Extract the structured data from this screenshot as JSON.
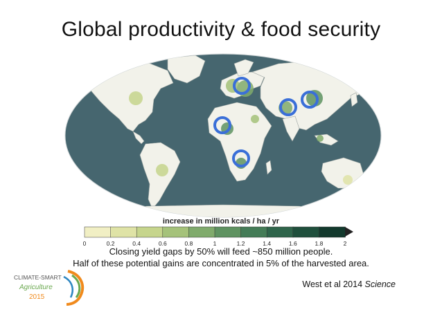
{
  "slide": {
    "title": "Global productivity & food security",
    "legend_title": "increase in million kcals / ha / yr",
    "legend_ticks": [
      "0",
      "0.2",
      "0.4",
      "0.6",
      "0.8",
      "1",
      "1.2",
      "1.4",
      "1.6",
      "1.8",
      "2"
    ],
    "legend_colors": [
      "#f1efc4",
      "#dfe3a6",
      "#c6d58c",
      "#a5c27a",
      "#80ab6c",
      "#5f9361",
      "#447c57",
      "#2f654b",
      "#1f4f3c",
      "#13392d"
    ],
    "caption_line1": "Closing yield gaps by 50% will feed ~850 million people.",
    "caption_line2": "Half of these potential gains are concentrated in 5% of the harvested area.",
    "citation_main": "West et al 2014 ",
    "citation_journal": "Science",
    "logo": {
      "line1": "CLIMATE-SMART",
      "line2": "Agriculture",
      "line3": "2015"
    },
    "colors": {
      "ocean": "#46666f",
      "land_base": "#f2f2ea",
      "highlight_circle": "#3a6fd8"
    },
    "highlighted_regions": [
      "Europe",
      "West Africa",
      "Southern Africa",
      "South Asia",
      "East Asia"
    ]
  }
}
